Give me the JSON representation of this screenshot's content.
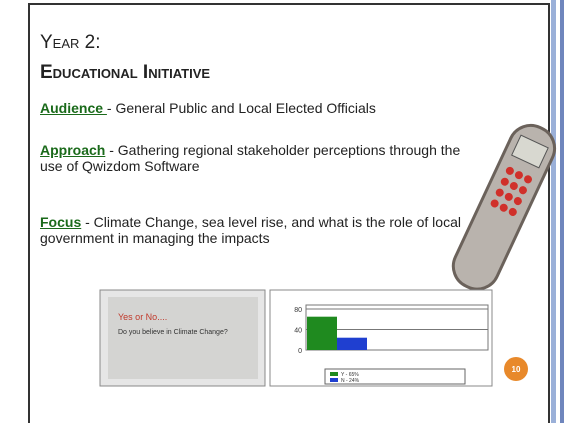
{
  "slide": {
    "title_line1": "Year 2:",
    "title_line2": "Educational Initiative",
    "items": [
      {
        "label": "Audience ",
        "text": " - General Public and Local Elected Officials"
      },
      {
        "label": "Approach",
        "text": " - Gathering regional stakeholder perceptions through the use of Qwizdom Software"
      },
      {
        "label": "Focus",
        "text": " - Climate Change, sea level rise, and what is the role of local government in managing the impacts"
      }
    ],
    "left_image": {
      "heading": "Yes or No....",
      "question": "Do you believe in Climate Change?"
    },
    "poll_chart": {
      "type": "bar",
      "ylim": [
        0,
        80
      ],
      "yticks": [
        0,
        40,
        80
      ],
      "series": [
        {
          "name": "Y - 65%",
          "color": "#1f8a1f",
          "values": [
            65
          ]
        },
        {
          "name": "N - 24%",
          "color": "#1f3fd0",
          "values": [
            24
          ]
        }
      ]
    },
    "page_number": "10"
  }
}
